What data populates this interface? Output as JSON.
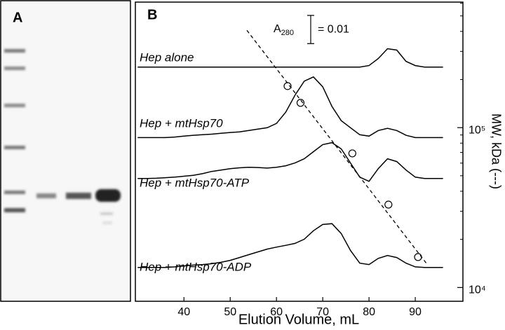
{
  "panel_a": {
    "label": "A"
  },
  "chart_data": {
    "type": "line",
    "panel_label": "B",
    "x_label": "Elution Volume, mL",
    "y2_label": "MW, kDa (---)",
    "xlim": [
      29.5,
      100.3
    ],
    "xticks": [
      40,
      50,
      60,
      70,
      80,
      90
    ],
    "ylim": [
      0,
      0.106
    ],
    "y2lim": [
      8200,
      610000
    ],
    "y2_log": true,
    "y2ticks": [
      {
        "value": 10000,
        "label": "10⁴"
      },
      {
        "value": 100000,
        "label": "10⁵"
      }
    ],
    "y2minor_ticks": [
      20000,
      30000,
      40000,
      50000,
      60000,
      70000,
      80000,
      90000,
      200000,
      300000,
      400000,
      500000,
      600000
    ],
    "scale_bar": {
      "label_main": "A",
      "label_sub": "280",
      "label_value": "= 0.01",
      "value": 0.01
    },
    "series": [
      {
        "name": "Hep alone",
        "color": "#000000",
        "style": "line",
        "x": [
          30,
          32,
          34,
          36,
          38,
          40,
          42,
          44,
          46,
          48,
          50,
          52,
          54,
          56,
          58,
          60,
          62,
          64,
          66,
          68,
          70,
          72,
          74,
          76,
          78,
          80,
          82,
          84,
          86,
          88,
          90,
          92,
          94,
          96
        ],
        "values": [
          0.083,
          0.083,
          0.083,
          0.083,
          0.083,
          0.083,
          0.083,
          0.083,
          0.083,
          0.083,
          0.083,
          0.083,
          0.083,
          0.083,
          0.083,
          0.083,
          0.083,
          0.083,
          0.083,
          0.083,
          0.083,
          0.083,
          0.083,
          0.083,
          0.083,
          0.0835,
          0.086,
          0.0895,
          0.089,
          0.085,
          0.0835,
          0.083,
          0.083,
          0.083
        ]
      },
      {
        "name": "Hep + mtHsp70",
        "color": "#000000",
        "style": "line",
        "x": [
          30,
          32,
          34,
          36,
          38,
          40,
          42,
          44,
          46,
          48,
          50,
          52,
          54,
          56,
          58,
          60,
          62,
          64,
          66,
          68,
          70,
          72,
          74,
          76,
          78,
          80,
          82,
          84,
          86,
          88,
          90,
          92,
          94,
          96
        ],
        "values": [
          0.058,
          0.058,
          0.058,
          0.058,
          0.0582,
          0.0585,
          0.0588,
          0.059,
          0.0592,
          0.0595,
          0.0598,
          0.06,
          0.0605,
          0.061,
          0.0615,
          0.063,
          0.067,
          0.073,
          0.078,
          0.0795,
          0.076,
          0.069,
          0.064,
          0.0615,
          0.059,
          0.0585,
          0.0605,
          0.0613,
          0.0605,
          0.0588,
          0.058,
          0.058,
          0.058,
          0.058
        ]
      },
      {
        "name": "Hep + mtHsp70-ATP",
        "color": "#000000",
        "style": "line",
        "x": [
          30,
          32,
          34,
          36,
          38,
          40,
          42,
          44,
          46,
          48,
          50,
          52,
          54,
          56,
          58,
          60,
          62,
          64,
          66,
          68,
          70,
          72,
          74,
          76,
          78,
          80,
          82,
          84,
          86,
          88,
          90,
          92,
          94,
          96
        ],
        "values": [
          0.0435,
          0.0435,
          0.0436,
          0.0438,
          0.044,
          0.0443,
          0.0446,
          0.0452,
          0.046,
          0.0465,
          0.047,
          0.0473,
          0.0475,
          0.0474,
          0.0472,
          0.0475,
          0.048,
          0.049,
          0.0505,
          0.053,
          0.0555,
          0.0562,
          0.054,
          0.049,
          0.044,
          0.0425,
          0.047,
          0.0505,
          0.0495,
          0.0465,
          0.044,
          0.0435,
          0.0435,
          0.0435
        ]
      },
      {
        "name": "Hep + mtHsp70-ADP",
        "color": "#000000",
        "style": "line",
        "x": [
          30,
          32,
          34,
          36,
          38,
          40,
          42,
          44,
          46,
          48,
          50,
          52,
          54,
          56,
          58,
          60,
          62,
          64,
          66,
          68,
          70,
          72,
          74,
          76,
          78,
          80,
          82,
          84,
          86,
          88,
          90,
          92,
          94,
          96
        ],
        "values": [
          0.012,
          0.012,
          0.012,
          0.012,
          0.0122,
          0.0125,
          0.0128,
          0.013,
          0.0133,
          0.0138,
          0.0145,
          0.0155,
          0.0165,
          0.0175,
          0.0185,
          0.0192,
          0.0198,
          0.0205,
          0.022,
          0.025,
          0.0272,
          0.0275,
          0.024,
          0.018,
          0.0135,
          0.013,
          0.0152,
          0.0162,
          0.0155,
          0.0135,
          0.0122,
          0.012,
          0.012,
          0.012
        ]
      },
      {
        "color": "#000000",
        "style": "markers",
        "axis": "y2",
        "x": [
          62.4,
          65.2,
          76.4,
          84.2,
          90.6
        ],
        "values": [
          182000,
          143000,
          69000,
          33000,
          15500
        ]
      },
      {
        "color": "#000000",
        "style": "dashed",
        "axis": "y2",
        "x": [
          53.6,
          92.7
        ],
        "values": [
          406000,
          13800
        ]
      }
    ]
  }
}
